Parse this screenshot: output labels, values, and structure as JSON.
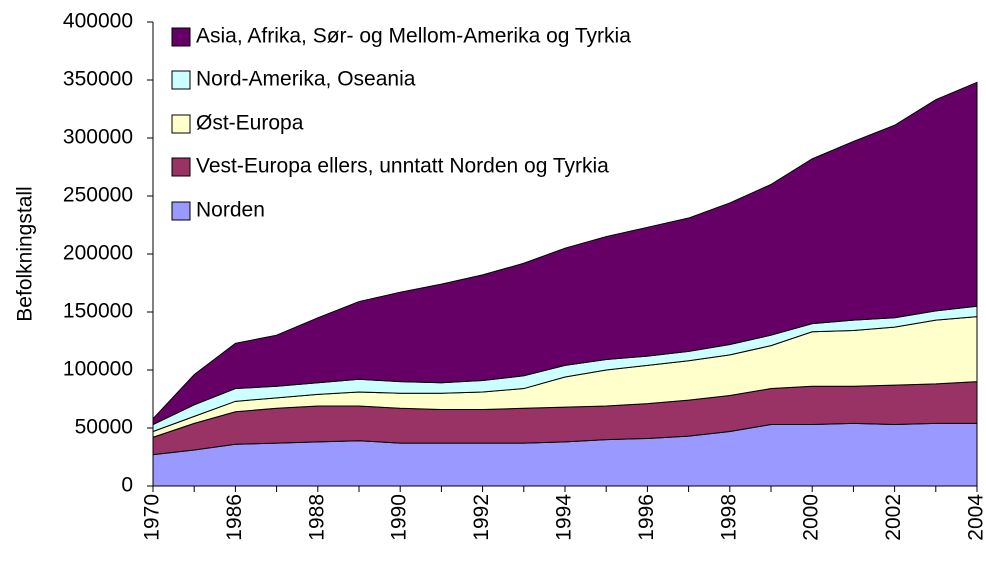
{
  "chart_data": {
    "type": "stacked_area",
    "y_label": "Befolkningstall",
    "categories": [
      "1970",
      null,
      "1986",
      null,
      "1988",
      null,
      "1990",
      null,
      "1992",
      null,
      "1994",
      null,
      "1996",
      null,
      "1998",
      null,
      "2000",
      null,
      "2002",
      null,
      "2004"
    ],
    "series": [
      {
        "name": "Norden",
        "color": "#9999ff",
        "values": [
          27000,
          31000,
          36000,
          37000,
          38000,
          39000,
          37000,
          37000,
          37000,
          37000,
          38000,
          40000,
          41000,
          43000,
          47000,
          53000,
          53000,
          54000,
          53000,
          54000,
          54000
        ]
      },
      {
        "name": "Vest-Europa ellers, unntatt Norden og Tyrkia",
        "color": "#993366",
        "values": [
          15000,
          23000,
          28000,
          30000,
          31000,
          30000,
          30000,
          29000,
          29000,
          30000,
          30000,
          29000,
          30000,
          31000,
          31000,
          31000,
          33000,
          32000,
          34000,
          34000,
          36000
        ]
      },
      {
        "name": "Øst-Europa",
        "color": "#ffffcc",
        "values": [
          5000,
          6000,
          9000,
          9000,
          10000,
          12000,
          13000,
          14000,
          15000,
          17000,
          26000,
          31000,
          33000,
          34000,
          35000,
          37000,
          47000,
          48000,
          50000,
          55000,
          56000
        ]
      },
      {
        "name": "Nord-Amerika, Oseania",
        "color": "#ccffff",
        "values": [
          6000,
          10000,
          11000,
          10000,
          10000,
          11000,
          10000,
          9000,
          10000,
          11000,
          10000,
          9000,
          8000,
          8000,
          9000,
          9000,
          7000,
          9000,
          8000,
          8000,
          9000
        ]
      },
      {
        "name": "Asia, Afrika, Sør- og Mellom-Amerika og Tyrkia",
        "color": "#660066",
        "values": [
          5000,
          26000,
          39000,
          44000,
          56000,
          67000,
          77000,
          85000,
          91000,
          97000,
          101000,
          106000,
          111000,
          115000,
          122000,
          130000,
          142000,
          154000,
          166000,
          182000,
          193000
        ]
      }
    ],
    "ylim": [
      0,
      400000
    ],
    "yticks": [
      0,
      50000,
      100000,
      150000,
      200000,
      250000,
      300000,
      350000,
      400000
    ],
    "legend": "upper left"
  }
}
